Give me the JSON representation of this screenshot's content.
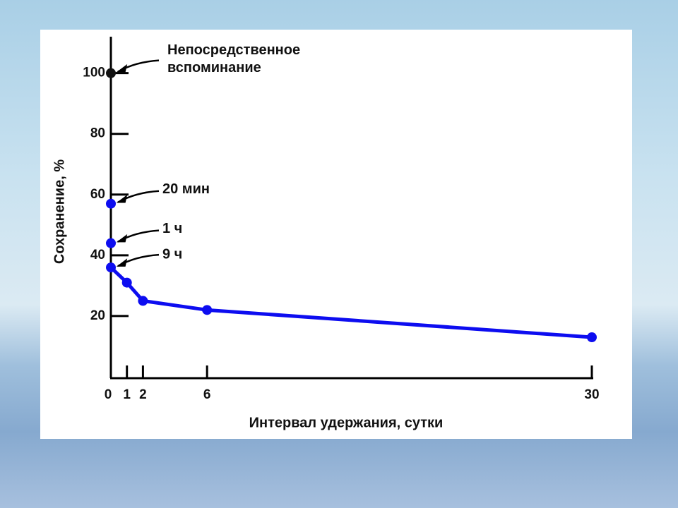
{
  "chart_data": {
    "type": "line",
    "x_label": "Интервал удержания, сутки",
    "y_label": "Сохранение, %",
    "x": [
      0,
      1,
      2,
      6,
      30
    ],
    "values": [
      36,
      31,
      25,
      22,
      13
    ],
    "point_labels": [
      "9 ч",
      null,
      null,
      null,
      null
    ],
    "color": "#0d0df0",
    "annotations": [
      {
        "text": [
          "Непосредственное",
          "вспоминание"
        ],
        "value": 100,
        "color": "#111111"
      },
      {
        "text": [
          "20 мин"
        ],
        "value": 57,
        "color": "#0d0df0"
      },
      {
        "text": [
          "1 ч"
        ],
        "value": 44,
        "color": "#0d0df0"
      }
    ],
    "xlim": [
      0,
      30
    ],
    "xticks": [
      0,
      1,
      2,
      6,
      30
    ],
    "ylim": [
      0,
      112
    ],
    "yticks": [
      20,
      40,
      60,
      80,
      100
    ]
  }
}
